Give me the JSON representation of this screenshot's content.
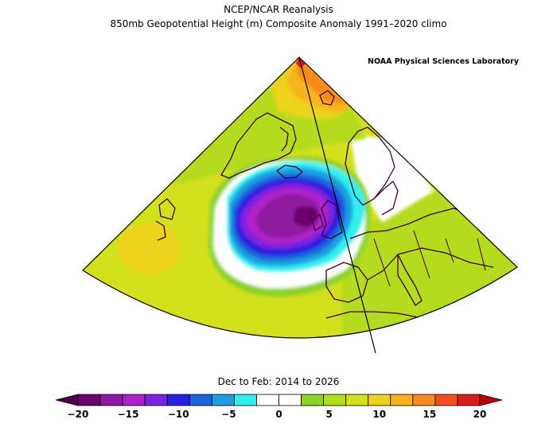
{
  "titles": {
    "line1": "NCEP/NCAR Reanalysis",
    "line2": "850mb Geopotential Height (m) Composite Anomaly 1991–2020 climo",
    "credit": "NOAA Physical Sciences Laboratory",
    "period": "Dec to Feb: 2014 to 2026"
  },
  "colorbar": {
    "min": -20,
    "max": 20,
    "step": 2.5,
    "ticks": [
      -20,
      -15,
      -10,
      -5,
      0,
      5,
      10,
      15,
      20
    ],
    "tick_labels": [
      "−20",
      "−15",
      "−10",
      "−5",
      "0",
      "5",
      "10",
      "15",
      "20"
    ],
    "colors": [
      "#6a006a",
      "#8e1aa0",
      "#b020c8",
      "#7a24e0",
      "#2a1ee0",
      "#1e64dc",
      "#1ea0e0",
      "#32f0f0",
      "#ffffff",
      "#ffffff",
      "#8cd228",
      "#b4dc1e",
      "#d2e01e",
      "#eed21e",
      "#f8b41e",
      "#f88a1e",
      "#f0501e",
      "#d81e1e"
    ],
    "under_color": "#4a004a",
    "over_color": "#c00000"
  },
  "chart_data": {
    "type": "heatmap",
    "variable": "850mb Geopotential Height Composite Anomaly",
    "units": "m",
    "climatology": "1991–2020",
    "season": "Dec to Feb",
    "years": [
      2014,
      2026
    ],
    "anomaly_centers": [
      {
        "region": "northeastern Atlantic, west of the British Isles",
        "anomaly_m": -20
      },
      {
        "region": "northern Greenland",
        "anomaly_m": 15
      },
      {
        "region": "subtropical Atlantic, west",
        "anomaly_m": 10
      },
      {
        "region": "Europe",
        "anomaly_m": 5
      }
    ]
  }
}
